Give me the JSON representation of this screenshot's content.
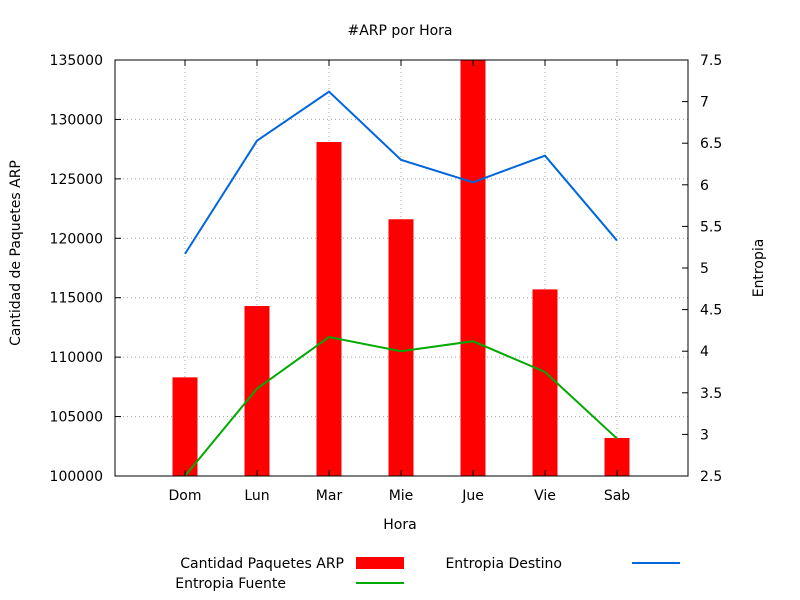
{
  "chart_data": {
    "type": "bar",
    "title": "#ARP por Hora",
    "xlabel": "Hora",
    "ylabel": "Cantidad de Paquetes ARP",
    "y2label": "Entropia",
    "categories": [
      "Dom",
      "Lun",
      "Mar",
      "Mie",
      "Jue",
      "Vie",
      "Sab"
    ],
    "ylim": [
      100000,
      135000
    ],
    "yticks": [
      100000,
      105000,
      110000,
      115000,
      120000,
      125000,
      130000,
      135000
    ],
    "y2lim": [
      2.5,
      7.5
    ],
    "y2ticks": [
      "2.5",
      "3",
      "3.5",
      "4",
      "4.5",
      "5",
      "5.5",
      "6",
      "6.5",
      "7",
      "7.5"
    ],
    "grid": true,
    "legend_position": "bottom",
    "series": [
      {
        "name": "Cantidad Paquetes ARP",
        "kind": "bar",
        "axis": "left",
        "color": "#ff0000",
        "values": [
          108300,
          114300,
          128100,
          121600,
          135000,
          115700,
          103200
        ]
      },
      {
        "name": "Entropia Fuente",
        "kind": "line",
        "axis": "right",
        "color": "#00aa00",
        "values": [
          2.5,
          3.55,
          4.17,
          4.0,
          4.12,
          3.75,
          2.95
        ]
      },
      {
        "name": "Entropia Destino",
        "kind": "line",
        "axis": "right",
        "color": "#0066dd",
        "values": [
          5.17,
          6.53,
          7.12,
          6.3,
          6.03,
          6.35,
          5.33
        ]
      }
    ]
  }
}
